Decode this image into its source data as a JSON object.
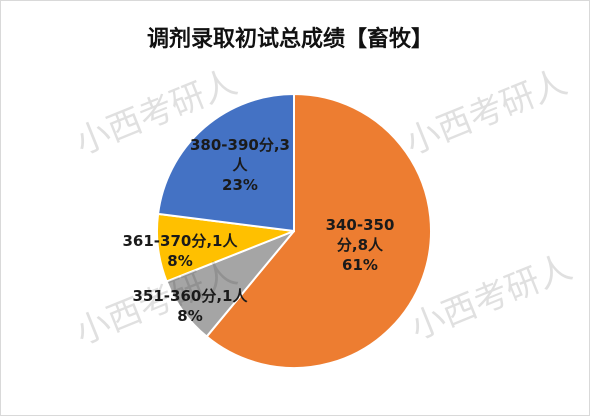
{
  "chart_data": {
    "type": "pie",
    "title": "调剂录取初试总成绩【畜牧】",
    "categories": [
      "340-350分,8人",
      "351-360分,1人",
      "361-370分,1人",
      "380-390分,3人"
    ],
    "values": [
      61,
      8,
      8,
      23
    ],
    "value_labels": [
      "61%",
      "8%",
      "8%",
      "23%"
    ],
    "colors": [
      "#ed7d31",
      "#a5a5a5",
      "#ffc000",
      "#4472c4"
    ],
    "watermark": "小西考研人"
  }
}
